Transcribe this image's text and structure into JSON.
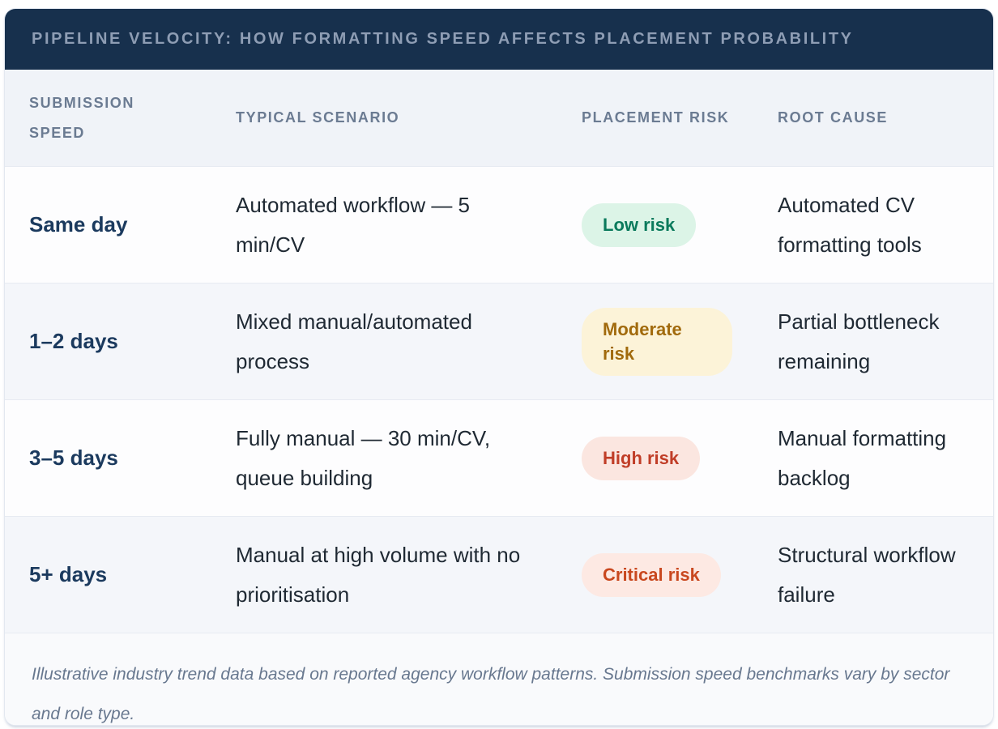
{
  "chart_data": {
    "type": "table",
    "title": "PIPELINE VELOCITY: HOW FORMATTING SPEED AFFECTS PLACEMENT PROBABILITY",
    "columns": [
      "SUBMISSION SPEED",
      "TYPICAL SCENARIO",
      "PLACEMENT RISK",
      "ROOT CAUSE"
    ],
    "rows": [
      {
        "speed": "Same day",
        "scenario": "Automated workflow — 5 min/CV",
        "risk": "Low risk",
        "risk_level": "low",
        "badge_bg": "#dcf4e7",
        "badge_color": "#0b7a5c",
        "cause": "Automated CV formatting tools"
      },
      {
        "speed": "1–2 days",
        "scenario": "Mixed manual/automated process",
        "risk": "Moderate risk",
        "risk_level": "moderate",
        "badge_bg": "#fcf3d8",
        "badge_color": "#a16a0c",
        "cause": "Partial bottleneck remaining"
      },
      {
        "speed": "3–5 days",
        "scenario": "Fully manual — 30 min/CV, queue building",
        "risk": "High risk",
        "risk_level": "high",
        "badge_bg": "#fbe6e0",
        "badge_color": "#c03d27",
        "cause": "Manual formatting backlog"
      },
      {
        "speed": "5+ days",
        "scenario": "Manual at high volume with no prioritisation",
        "risk": "Critical risk",
        "risk_level": "critical",
        "badge_bg": "#fde9e3",
        "badge_color": "#c9481f",
        "cause": "Structural workflow failure"
      }
    ],
    "footnote": "Illustrative industry trend data based on reported agency workflow patterns. Submission speed benchmarks vary by sector and role type.",
    "layout_hints": {
      "zebra_striping": true,
      "header_position": "top"
    }
  },
  "theme": {
    "title_bar_bg": "#17304d",
    "title_text": "#8e9db4",
    "column_header_bg": "#f0f3f8",
    "column_header_text": "#6b7b92",
    "row_bg": "#fdfdfe",
    "row_alt_bg": "#f4f6fa",
    "row_border": "#e7ebf2",
    "speed_text": "#1b3a5e",
    "body_text": "#1f2933",
    "footnote_text": "#68788f"
  }
}
